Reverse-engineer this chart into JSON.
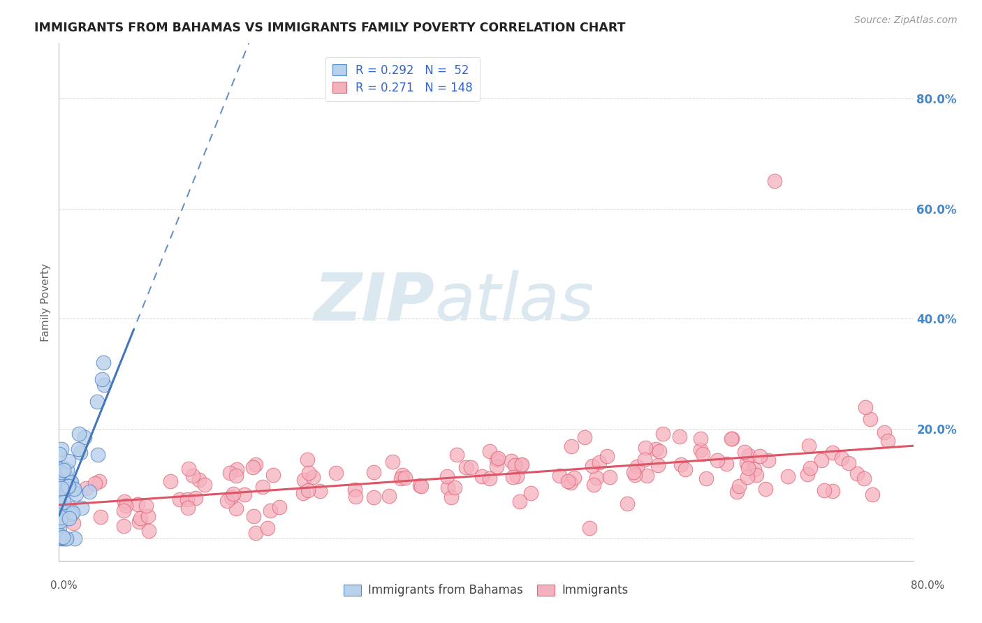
{
  "title": "IMMIGRANTS FROM BAHAMAS VS IMMIGRANTS FAMILY POVERTY CORRELATION CHART",
  "source": "Source: ZipAtlas.com",
  "ylabel": "Family Poverty",
  "xlim": [
    0.0,
    0.8
  ],
  "ylim": [
    -0.04,
    0.9
  ],
  "ytick_vals": [
    0.0,
    0.2,
    0.4,
    0.6,
    0.8
  ],
  "ytick_labels": [
    "",
    "20.0%",
    "40.0%",
    "60.0%",
    "80.0%"
  ],
  "legend_r1": "R = 0.292",
  "legend_n1": "N =  52",
  "legend_r2": "R = 0.271",
  "legend_n2": "N = 148",
  "blue_fill": "#b8d0ea",
  "blue_edge": "#5588cc",
  "pink_fill": "#f5b0be",
  "pink_edge": "#e06878",
  "blue_line_color": "#4477bb",
  "pink_line_color": "#dd5566",
  "grid_color": "#cccccc",
  "watermark_zip": "ZIP",
  "watermark_atlas": "atlas",
  "watermark_color": "#dce8f0",
  "background_color": "#ffffff",
  "seed": 12
}
